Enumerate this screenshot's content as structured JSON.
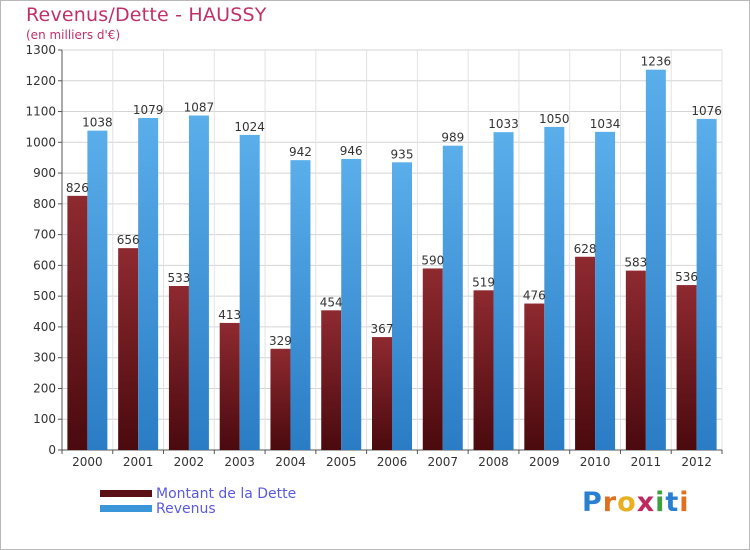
{
  "title": "Revenus/Dette - HAUSSY",
  "subtitle": "(en milliers d'€)",
  "legend": {
    "items": [
      {
        "label": "Montant de la Dette",
        "color": "#7a1f24"
      },
      {
        "label": "Revenus",
        "color": "#3a95d9"
      }
    ]
  },
  "logo": {
    "letters": [
      "P",
      "r",
      "o",
      "x",
      "i",
      "t",
      "i"
    ],
    "colors": [
      "#2a7fd0",
      "#e07020",
      "#e8b020",
      "#c02860",
      "#40a040",
      "#2a7fd0",
      "#e07020"
    ]
  },
  "chart_data": {
    "type": "bar",
    "categories": [
      "2000",
      "2001",
      "2002",
      "2003",
      "2004",
      "2005",
      "2006",
      "2007",
      "2008",
      "2009",
      "2010",
      "2011",
      "2012"
    ],
    "series": [
      {
        "name": "Montant de la Dette",
        "values": [
          826,
          656,
          533,
          413,
          329,
          454,
          367,
          590,
          519,
          476,
          628,
          583,
          536
        ],
        "color": "#7a1f24"
      },
      {
        "name": "Revenus",
        "values": [
          1038,
          1079,
          1087,
          1024,
          942,
          946,
          935,
          989,
          1033,
          1050,
          1034,
          1236,
          1076
        ],
        "color": "#3a95d9"
      }
    ],
    "ylim": [
      0,
      1300
    ],
    "yticks": [
      0,
      100,
      200,
      300,
      400,
      500,
      600,
      700,
      800,
      900,
      1000,
      1100,
      1200,
      1300
    ],
    "grid": true,
    "legend_position": "bottom-left"
  }
}
